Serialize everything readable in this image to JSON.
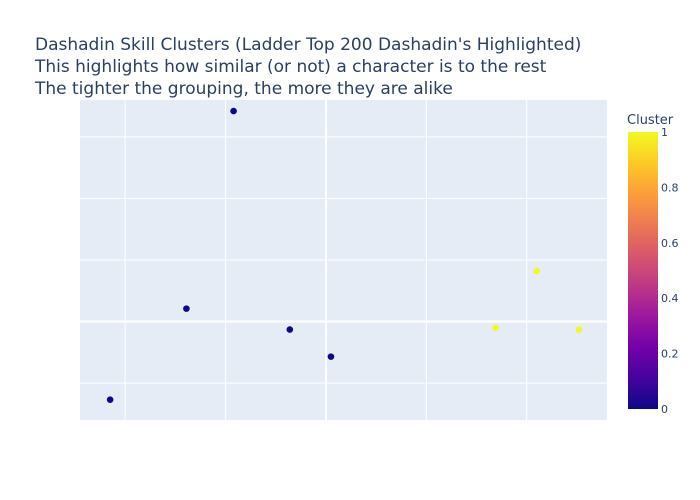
{
  "chart_data": {
    "type": "scatter",
    "title_lines": [
      "Dashadin Skill Clusters (Ladder Top 200 Dashadin's Highlighted)",
      "This highlights how similar (or not) a character is to the rest",
      "The tighter the grouping, the more they are alike"
    ],
    "xlabel": "",
    "ylabel": "",
    "xlim": [
      -1.45,
      3.8
    ],
    "ylim": [
      -0.6,
      4.6
    ],
    "grid": true,
    "x_axis_ticklabels_visible": false,
    "y_axis_ticklabels_visible": false,
    "points": [
      {
        "x": -1.15,
        "y": -0.27,
        "cluster": 0
      },
      {
        "x": -0.39,
        "y": 1.21,
        "cluster": 0
      },
      {
        "x": 0.08,
        "y": 4.42,
        "cluster": 0
      },
      {
        "x": 0.64,
        "y": 0.87,
        "cluster": 0
      },
      {
        "x": 1.05,
        "y": 0.43,
        "cluster": 0
      },
      {
        "x": 2.69,
        "y": 0.9,
        "cluster": 1
      },
      {
        "x": 3.1,
        "y": 1.82,
        "cluster": 1
      },
      {
        "x": 3.52,
        "y": 0.87,
        "cluster": 1
      }
    ],
    "colorbar": {
      "title": "Cluster",
      "range": [
        0,
        1
      ],
      "ticks": [
        "0",
        "0.2",
        "0.4",
        "0.6",
        "0.8",
        "1"
      ],
      "colors": {
        "low": "#0d0887",
        "high": "#f0f921"
      }
    }
  },
  "colors": {
    "plot_bg": "#e5ecf6",
    "grid": "#ffffff",
    "text": "#2a3f5f"
  }
}
